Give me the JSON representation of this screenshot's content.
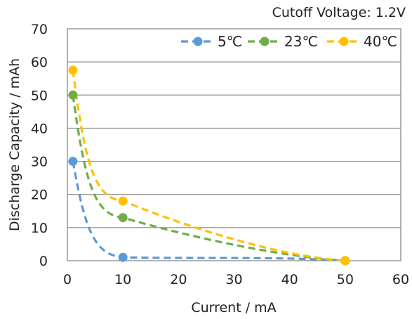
{
  "chart_data": {
    "type": "line",
    "title": "",
    "annotation": "Cutoff Voltage: 1.2V",
    "xlabel": "Current / mA",
    "ylabel": "Discharge Capacity / mAh",
    "xlim": [
      0,
      60
    ],
    "ylim": [
      0,
      70
    ],
    "xticks": [
      "0",
      "10",
      "20",
      "30",
      "40",
      "50",
      "60"
    ],
    "yticks": [
      "0",
      "10",
      "20",
      "30",
      "40",
      "50",
      "60",
      "70"
    ],
    "grid": "horizontal",
    "legend_position": "top-right",
    "line_style": "dashed",
    "series": [
      {
        "name": "5℃",
        "color": "#5b9bd5",
        "x": [
          1,
          10,
          50
        ],
        "y": [
          30,
          1,
          0
        ]
      },
      {
        "name": "23℃",
        "color": "#70ad47",
        "x": [
          1,
          10,
          50
        ],
        "y": [
          50,
          13,
          0
        ]
      },
      {
        "name": "40℃",
        "color": "#ffc000",
        "x": [
          1,
          10,
          50
        ],
        "y": [
          57.5,
          18,
          0
        ]
      }
    ]
  }
}
